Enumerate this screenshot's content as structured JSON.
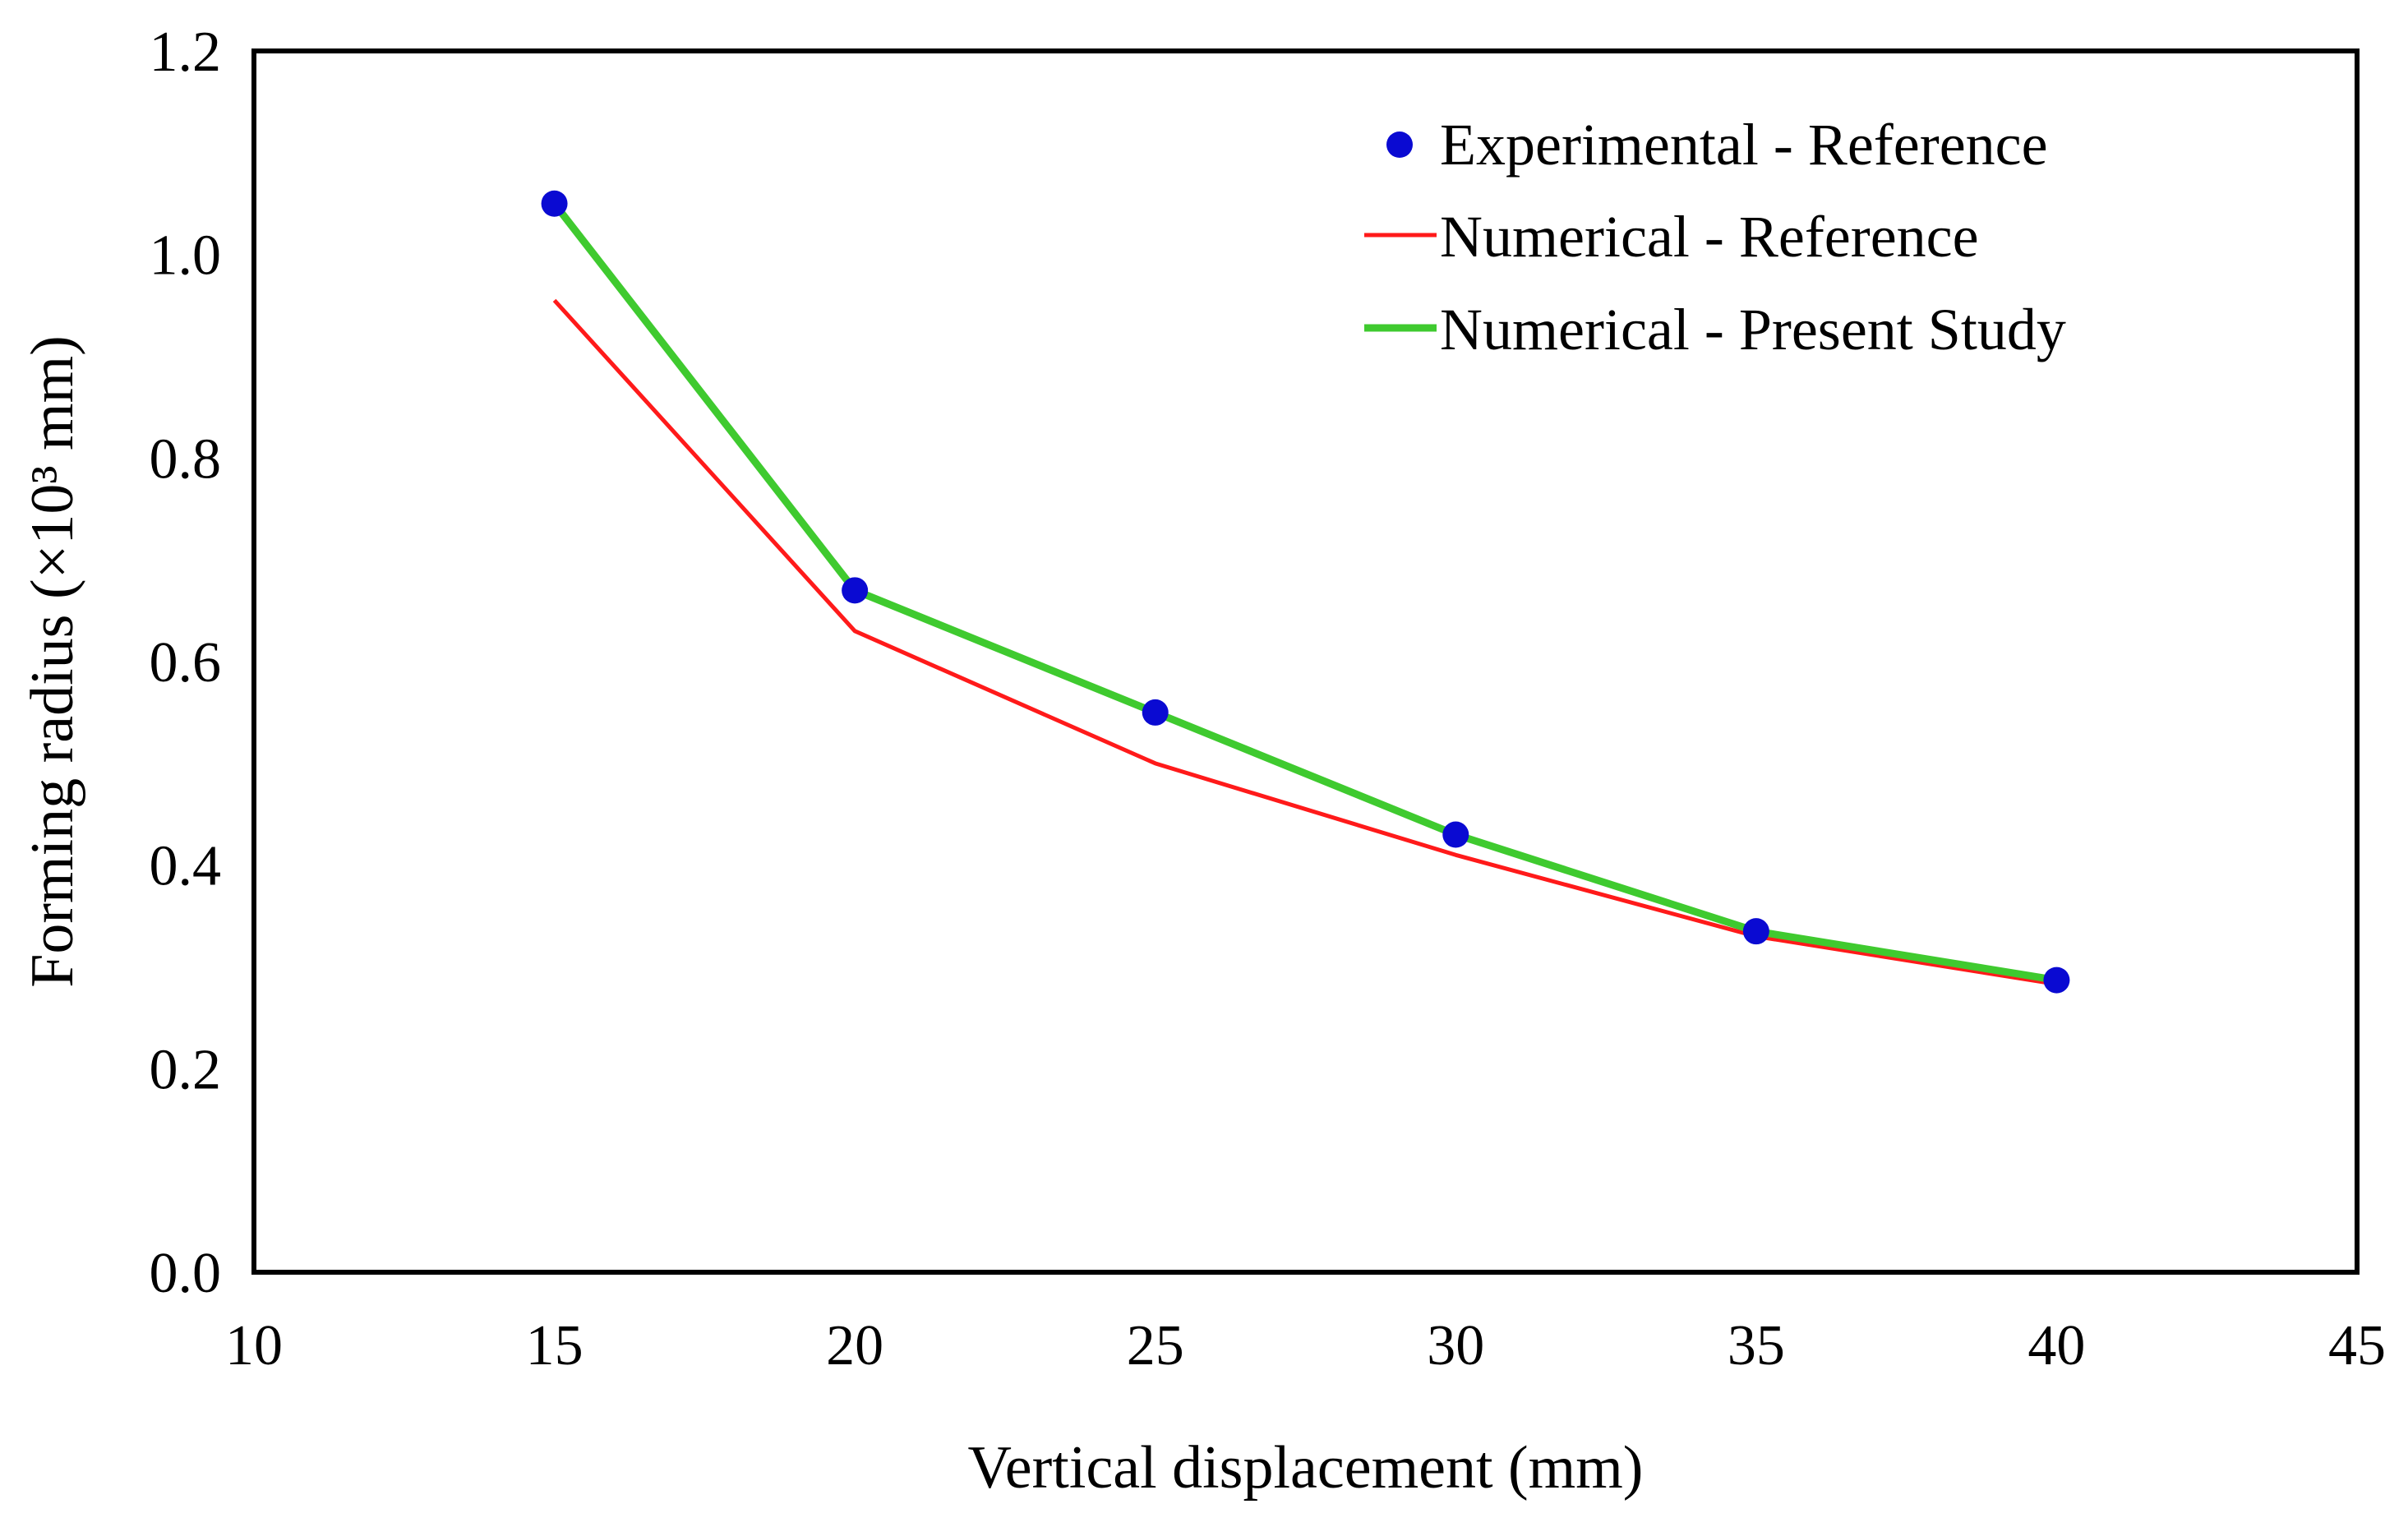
{
  "chart_data": {
    "type": "line",
    "xlabel": "Vertical displacement  (mm)",
    "ylabel": "Forming  radius (×10³ mm)",
    "xlim": [
      10,
      45
    ],
    "ylim": [
      0.0,
      1.2
    ],
    "x_ticks": [
      10,
      15,
      20,
      25,
      30,
      35,
      40,
      45
    ],
    "y_ticks": [
      0.0,
      0.2,
      0.4,
      0.6,
      0.8,
      1.0,
      1.2
    ],
    "x_tick_labels": [
      "10",
      "15",
      "20",
      "25",
      "30",
      "35",
      "40",
      "45"
    ],
    "y_tick_labels": [
      "0.0",
      "0.2",
      "0.4",
      "0.6",
      "0.8",
      "1.0",
      "1.2"
    ],
    "grid": false,
    "legend_position": "top-right",
    "series": [
      {
        "name": "Experimental - Reference",
        "kind": "scatter",
        "color": "#0a0ad2",
        "x": [
          15,
          20,
          25,
          30,
          35,
          40
        ],
        "y": [
          1.05,
          0.67,
          0.55,
          0.43,
          0.335,
          0.287
        ]
      },
      {
        "name": "Numerical - Reference",
        "kind": "line",
        "color": "#ff1a1a",
        "x": [
          15,
          20,
          25,
          30,
          35,
          40
        ],
        "y": [
          0.955,
          0.63,
          0.5,
          0.41,
          0.33,
          0.283
        ]
      },
      {
        "name": "Numerical - Present Study",
        "kind": "line",
        "color": "#3fca2f",
        "x": [
          15,
          20,
          25,
          30,
          35,
          40
        ],
        "y": [
          1.05,
          0.67,
          0.55,
          0.43,
          0.335,
          0.287
        ]
      }
    ]
  }
}
